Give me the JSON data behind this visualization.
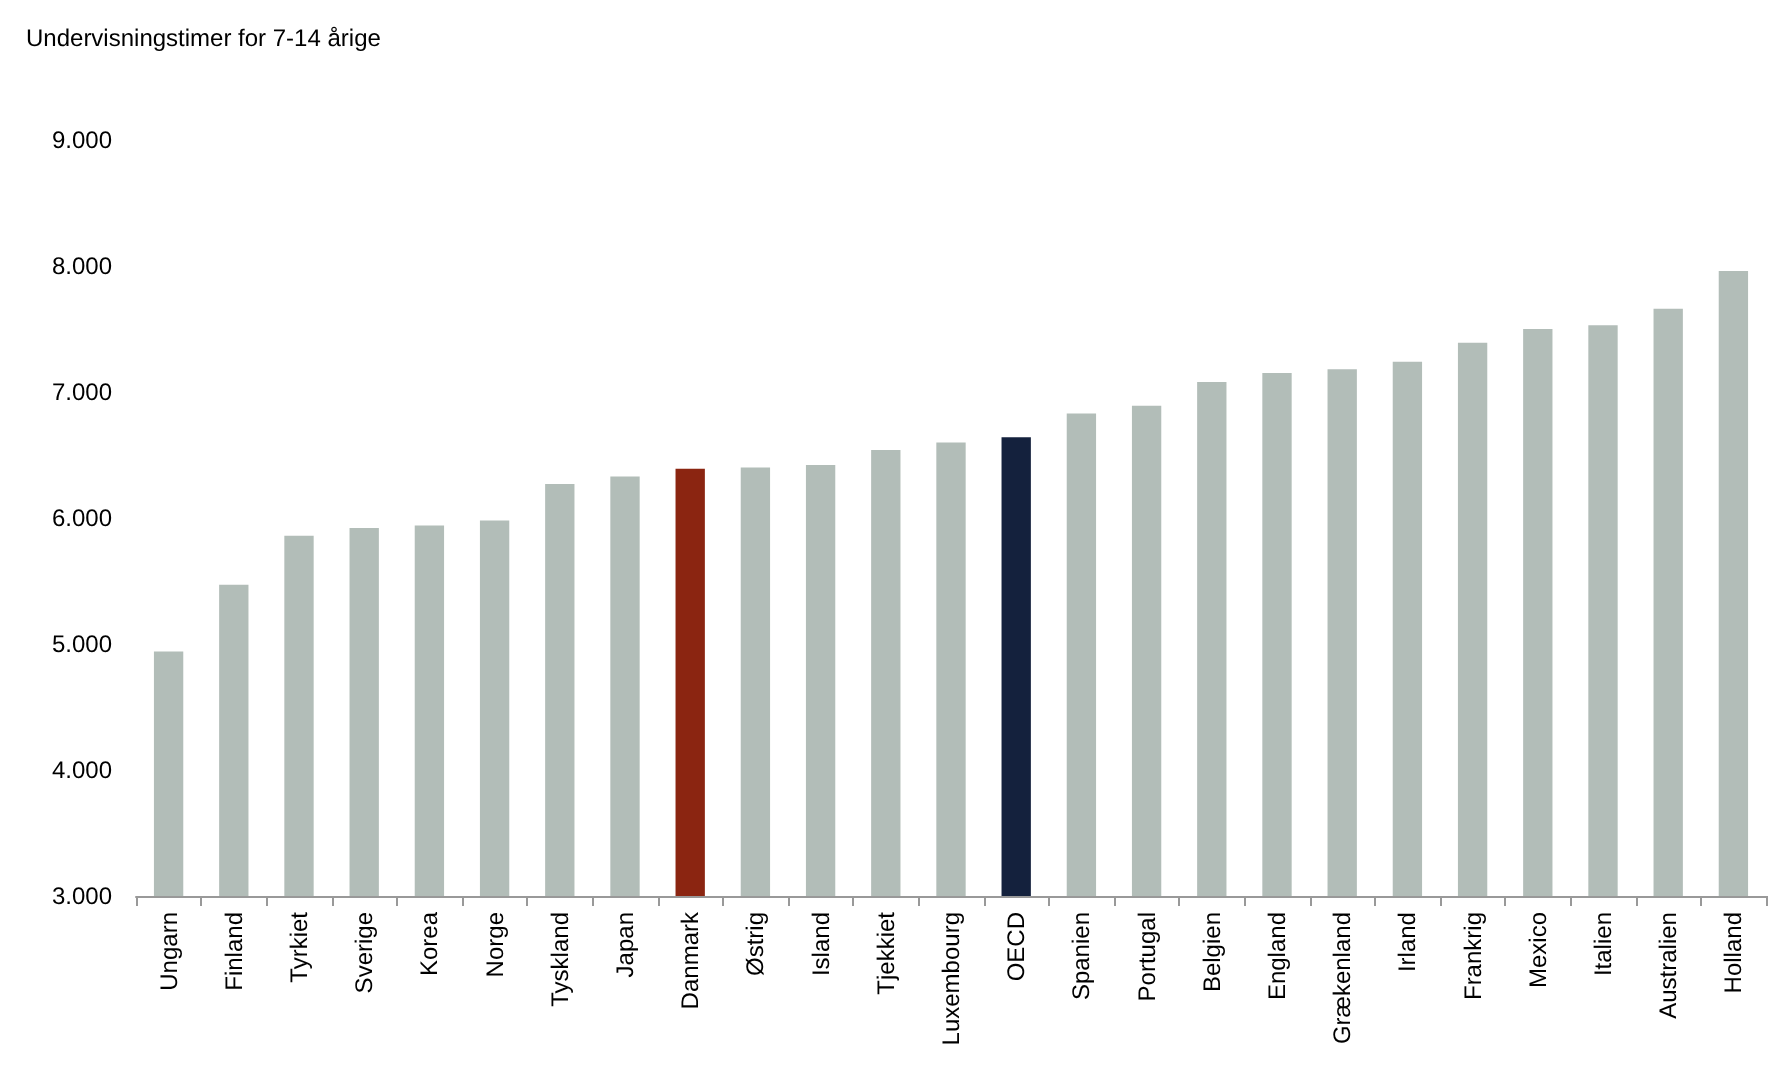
{
  "chart_data": {
    "type": "bar",
    "ylabel": "Undervisningstimer for 7-14 årige",
    "categories": [
      "Ungarn",
      "Finland",
      "Tyrkiet",
      "Sverige",
      "Korea",
      "Norge",
      "Tyskland",
      "Japan",
      "Danmark",
      "Østrig",
      "Island",
      "Tjekkiet",
      "Luxembourg",
      "OECD",
      "Spanien",
      "Portugal",
      "Belgien",
      "England",
      "Grækenland",
      "Irland",
      "Frankrig",
      "Mexico",
      "Italien",
      "Australien",
      "Holland"
    ],
    "values": [
      4940,
      5470,
      5860,
      5920,
      5940,
      5980,
      6270,
      6330,
      6390,
      6400,
      6420,
      6540,
      6600,
      6640,
      6830,
      6890,
      7080,
      7150,
      7180,
      7240,
      7390,
      7500,
      7530,
      7660,
      7960
    ],
    "colors": [
      "#b2bdb8",
      "#b2bdb8",
      "#b2bdb8",
      "#b2bdb8",
      "#b2bdb8",
      "#b2bdb8",
      "#b2bdb8",
      "#b2bdb8",
      "#8b2511",
      "#b2bdb8",
      "#b2bdb8",
      "#b2bdb8",
      "#b2bdb8",
      "#14213d",
      "#b2bdb8",
      "#b2bdb8",
      "#b2bdb8",
      "#b2bdb8",
      "#b2bdb8",
      "#b2bdb8",
      "#b2bdb8",
      "#b2bdb8",
      "#b2bdb8",
      "#b2bdb8",
      "#b2bdb8"
    ],
    "ylim": [
      3000,
      9000
    ],
    "yticks": [
      {
        "value": 3000,
        "label": "3.000"
      },
      {
        "value": 4000,
        "label": "4.000"
      },
      {
        "value": 5000,
        "label": "5.000"
      },
      {
        "value": 6000,
        "label": "6.000"
      },
      {
        "value": 7000,
        "label": "7.000"
      },
      {
        "value": 8000,
        "label": "8.000"
      },
      {
        "value": 9000,
        "label": "9.000"
      }
    ],
    "grid": false
  }
}
